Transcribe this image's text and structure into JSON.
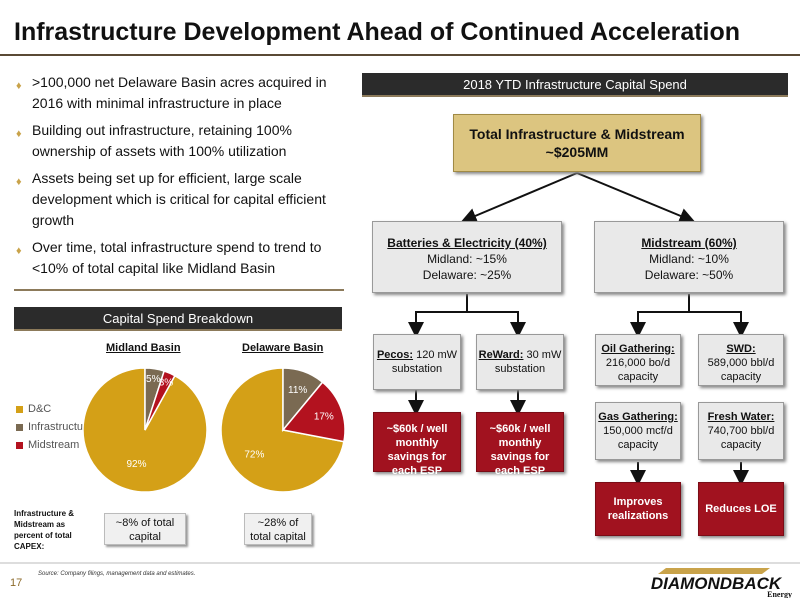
{
  "title": "Infrastructure Development Ahead of Continued Acceleration",
  "bullets": [
    ">100,000 net Delaware Basin acres acquired in 2016 with minimal infrastructure in place",
    "Building out infrastructure, retaining 100% ownership of assets with 100% utilization",
    "Assets being set up for efficient, large scale development which is critical for capital efficient growth",
    "Over time, total infrastructure spend to trend to <10% of total capital like Midland Basin"
  ],
  "capital_spend_header": "Capital Spend Breakdown",
  "infra_header": "2018 YTD Infrastructure Capital Spend",
  "colors": {
    "dc": "#d4a017",
    "infrastructure": "#7a6a52",
    "midstream": "#b3121f",
    "gold_box": "#dcc580",
    "red_box": "#a1121f"
  },
  "chart_data": [
    {
      "type": "pie",
      "title": "Midland Basin",
      "categories": [
        "D&C",
        "Infrastructure",
        "Midstream"
      ],
      "values": [
        92,
        5,
        3
      ],
      "labels": [
        "92%",
        "5%",
        "3%"
      ]
    },
    {
      "type": "pie",
      "title": "Delaware Basin",
      "categories": [
        "D&C",
        "Infrastructure",
        "Midstream"
      ],
      "values": [
        72,
        11,
        17
      ],
      "labels": [
        "72%",
        "11%",
        "17%"
      ]
    }
  ],
  "legend": [
    "D&C",
    "Infrastructure",
    "Midstream"
  ],
  "capex_note": "Infrastructure & Midstream as percent of total CAPEX:",
  "midland_pct": "~8% of total capital",
  "delaware_pct": "~28% of total capital",
  "total_box": {
    "line1": "Total Infrastructure & Midstream",
    "line2": "~$205MM"
  },
  "batteries": {
    "title": "Batteries & Electricity (40%)",
    "line1": "Midland: ~15%",
    "line2": "Delaware: ~25%"
  },
  "midstream": {
    "title": "Midstream (60%)",
    "line1": "Midland: ~10%",
    "line2": "Delaware: ~50%"
  },
  "pecos": {
    "label": "Pecos:",
    "value": "120 mW substation"
  },
  "reward": {
    "label": "ReWard:",
    "value": "30 mW substation"
  },
  "savings1": "~$60k / well monthly savings for each ESP",
  "savings2": "~$60k / well monthly savings for each ESP",
  "oil_gathering": {
    "label": "Oil Gathering:",
    "value": "216,000 bo/d capacity"
  },
  "swd": {
    "label": "SWD:",
    "value": "589,000 bbl/d capacity"
  },
  "gas_gathering": {
    "label": "Gas Gathering:",
    "value": "150,000 mcf/d capacity"
  },
  "fresh_water": {
    "label": "Fresh Water:",
    "value": "740,700 bbl/d capacity"
  },
  "improves": "Improves realizations",
  "reduces": "Reduces LOE",
  "page_number": "17",
  "source": "Source: Company filings, management data and estimates.",
  "logo": {
    "name": "DIAMONDBACK",
    "sub": "Energy"
  }
}
